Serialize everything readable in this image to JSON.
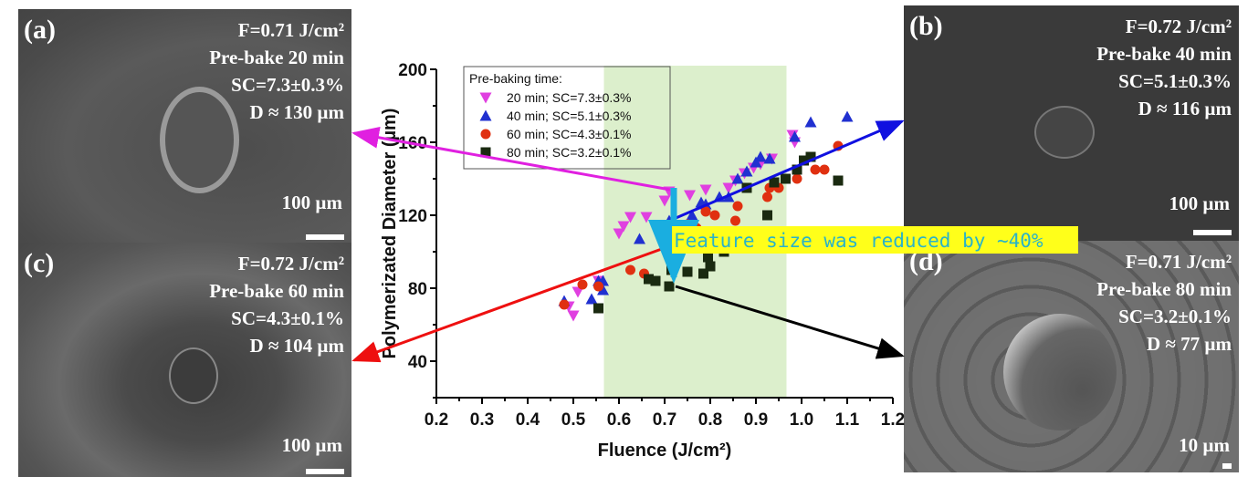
{
  "panels": {
    "a": {
      "label": "(a)",
      "lines": [
        "F=0.71 J/cm²",
        "Pre-bake 20 min",
        "SC=7.3±0.3%",
        "D ≈ 130 µm"
      ],
      "scale": "100 µm"
    },
    "b": {
      "label": "(b)",
      "lines": [
        "F=0.72 J/cm²",
        "Pre-bake 40 min",
        "SC=5.1±0.3%",
        "D ≈ 116 µm"
      ],
      "scale": "100 µm"
    },
    "c": {
      "label": "(c)",
      "lines": [
        "F=0.72 J/cm²",
        "Pre-bake 60 min",
        "SC=4.3±0.1%",
        "D ≈ 104 µm"
      ],
      "scale": "100 µm"
    },
    "d": {
      "label": "(d)",
      "lines": [
        "F=0.71 J/cm²",
        "Pre-bake 80 min",
        "SC=3.2±0.1%",
        "D ≈ 77 µm"
      ],
      "scale": "10 µm"
    }
  },
  "chart_data": {
    "type": "scatter",
    "title": "",
    "xlabel": "Fluence (J/cm²)",
    "ylabel": "Polymerizated Diameter (µm)",
    "xlim": [
      0.2,
      1.2
    ],
    "ylim": [
      20,
      200
    ],
    "xticks": [
      0.2,
      0.3,
      0.4,
      0.5,
      0.6,
      0.7,
      0.8,
      0.9,
      1.0,
      1.1,
      1.2
    ],
    "xtick_labels": [
      "0.2",
      "0.3",
      "0.4",
      "0.5",
      "0.6",
      "0.7",
      "0.8",
      "0.9",
      "1.0",
      "1.1",
      "1.2"
    ],
    "yticks": [
      40,
      80,
      120,
      160,
      200
    ],
    "ytick_labels": [
      "40",
      "80",
      "120",
      "160",
      "200"
    ],
    "shaded_region": {
      "x": [
        0.567,
        0.967
      ],
      "color": "#dcefcc"
    },
    "legend": {
      "title": "Pre-baking time:",
      "placement": "top-left"
    },
    "series": [
      {
        "name": "20 min; SC=7.3±0.3%",
        "marker": "triangle-down",
        "color": "#e040e0",
        "points": [
          [
            0.49,
            70
          ],
          [
            0.5,
            65
          ],
          [
            0.51,
            78
          ],
          [
            0.555,
            84
          ],
          [
            0.6,
            110
          ],
          [
            0.61,
            114
          ],
          [
            0.625,
            119
          ],
          [
            0.66,
            119
          ],
          [
            0.7,
            128
          ],
          [
            0.71,
            133
          ],
          [
            0.755,
            131
          ],
          [
            0.79,
            134
          ],
          [
            0.84,
            135
          ],
          [
            0.855,
            139
          ],
          [
            0.875,
            143
          ],
          [
            0.895,
            146
          ],
          [
            0.91,
            148
          ],
          [
            0.935,
            151
          ],
          [
            0.98,
            164
          ],
          [
            0.985,
            160
          ]
        ]
      },
      {
        "name": "40 min; SC=5.1±0.3%",
        "marker": "triangle-up",
        "color": "#2030d0",
        "points": [
          [
            0.48,
            73
          ],
          [
            0.54,
            74
          ],
          [
            0.555,
            84
          ],
          [
            0.565,
            79
          ],
          [
            0.565,
            84
          ],
          [
            0.645,
            107
          ],
          [
            0.7,
            110
          ],
          [
            0.71,
            117
          ],
          [
            0.76,
            120
          ],
          [
            0.78,
            127
          ],
          [
            0.79,
            126
          ],
          [
            0.82,
            130
          ],
          [
            0.84,
            130
          ],
          [
            0.86,
            140
          ],
          [
            0.88,
            144
          ],
          [
            0.9,
            149
          ],
          [
            0.91,
            152
          ],
          [
            0.93,
            151
          ],
          [
            0.985,
            163
          ],
          [
            1.02,
            171
          ],
          [
            1.1,
            174
          ]
        ]
      },
      {
        "name": "60 min; SC=4.3±0.1%",
        "marker": "circle",
        "color": "#e03010",
        "points": [
          [
            0.48,
            71
          ],
          [
            0.52,
            82
          ],
          [
            0.555,
            81
          ],
          [
            0.625,
            90
          ],
          [
            0.655,
            88
          ],
          [
            0.72,
            104
          ],
          [
            0.745,
            110
          ],
          [
            0.75,
            115
          ],
          [
            0.77,
            113
          ],
          [
            0.79,
            122
          ],
          [
            0.81,
            120
          ],
          [
            0.855,
            117
          ],
          [
            0.86,
            125
          ],
          [
            0.925,
            130
          ],
          [
            0.93,
            135
          ],
          [
            0.95,
            135
          ],
          [
            0.965,
            140
          ],
          [
            0.99,
            140
          ],
          [
            1.03,
            145
          ],
          [
            1.05,
            145
          ],
          [
            1.08,
            158
          ]
        ]
      },
      {
        "name": "80 min; SC=3.2±0.1%",
        "marker": "square",
        "color": "#1a2a10",
        "points": [
          [
            0.555,
            69
          ],
          [
            0.665,
            85
          ],
          [
            0.68,
            84
          ],
          [
            0.71,
            81
          ],
          [
            0.715,
            90
          ],
          [
            0.75,
            89
          ],
          [
            0.785,
            88
          ],
          [
            0.795,
            97
          ],
          [
            0.8,
            92
          ],
          [
            0.83,
            100
          ],
          [
            0.88,
            135
          ],
          [
            0.925,
            120
          ],
          [
            0.94,
            138
          ],
          [
            0.965,
            140
          ],
          [
            0.99,
            145
          ],
          [
            1.005,
            150
          ],
          [
            1.02,
            152
          ],
          [
            1.08,
            139
          ]
        ]
      }
    ],
    "fit_lines": [
      {
        "name": "40 min trend",
        "color": "#1010e0",
        "from": [
          0.72,
          118
        ],
        "to": [
          1.2,
          170
        ],
        "arrow": "end"
      },
      {
        "name": "60 min trend",
        "color": "#ee1010",
        "from": [
          0.71,
          103
        ],
        "to": [
          -0.0,
          40
        ],
        "arrow": "end"
      }
    ],
    "annotations": [
      {
        "text": "Feature size was reduced by ~40%",
        "background": "#ffff1a",
        "color": "#2ab3c8"
      }
    ],
    "reduction_arrow": {
      "x": 0.72,
      "from": 135,
      "to": 81,
      "color": "#1aaee0"
    }
  },
  "connector_arrows": [
    {
      "target": "panel-a",
      "color": "#e020e0"
    },
    {
      "target": "panel-b",
      "color": "#1010e0"
    },
    {
      "target": "panel-c",
      "color": "#ee1010"
    },
    {
      "target": "panel-d",
      "color": "#000000"
    }
  ]
}
